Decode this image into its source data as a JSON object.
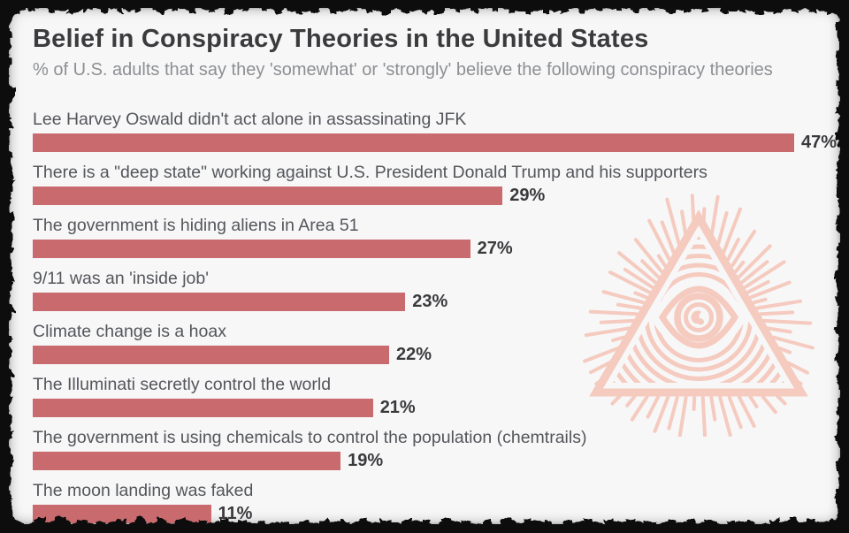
{
  "header": {
    "title": "Belief in Conspiracy Theories in the United States",
    "subtitle": "% of U.S. adults that say they 'somewhat' or 'strongly' believe the following conspiracy theories"
  },
  "chart_data": {
    "type": "bar",
    "orientation": "horizontal",
    "title": "Belief in Conspiracy Theories in the United States",
    "subtitle": "% of U.S. adults that say they 'somewhat' or 'strongly' believe the following conspiracy theories",
    "unit": "percent",
    "xlim": [
      0,
      50
    ],
    "grid": false,
    "legend": "none",
    "categories": [
      "Lee Harvey Oswald didn't act alone in assassinating JFK",
      "There is a \"deep state\" working against U.S. President Donald Trump and his supporters",
      "The government is hiding aliens in Area 51",
      "9/11 was an 'inside job'",
      "Climate change is a hoax",
      "The Illuminati secretly control the world",
      "The government is using chemicals to control the population (chemtrails)",
      "The moon landing was faked"
    ],
    "values": [
      47,
      29,
      27,
      23,
      22,
      21,
      19,
      11
    ],
    "value_labels": [
      "47%",
      "29%",
      "27%",
      "23%",
      "22%",
      "21%",
      "19%",
      "11%"
    ],
    "bar_color": "#c96b6e"
  },
  "decor": {
    "illustration": "illuminati-eye-pyramid",
    "illustration_color": "#f5cabf",
    "frame_color": "#0b0b0b",
    "background_color": "#f7f7f8",
    "title_color": "#3b3b3d",
    "subtitle_color": "#8d8f92",
    "label_color": "#54565a",
    "value_color": "#3a3a3c"
  }
}
